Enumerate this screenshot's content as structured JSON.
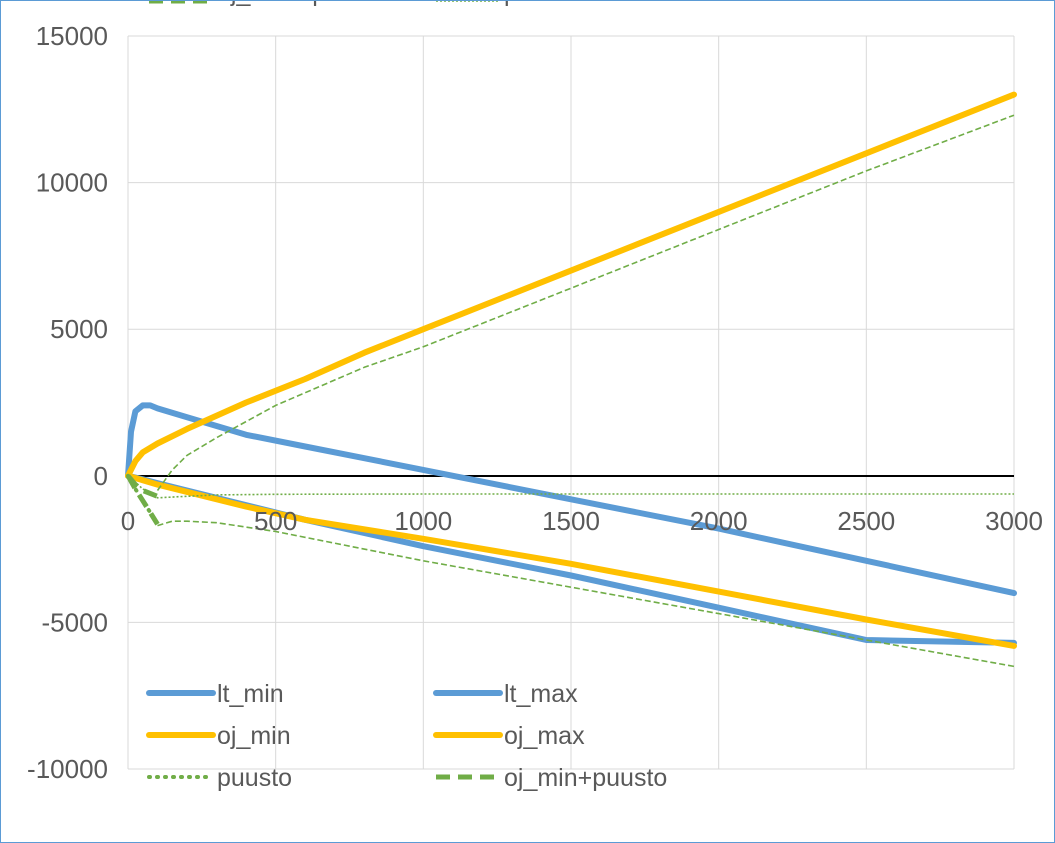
{
  "chart_data": {
    "type": "line",
    "title": "",
    "xlabel": "",
    "ylabel": "",
    "xlim": [
      0,
      3000
    ],
    "ylim": [
      -10000,
      15000
    ],
    "x_ticks": [
      0,
      500,
      1000,
      1500,
      2000,
      2500,
      3000
    ],
    "y_ticks": [
      -10000,
      -5000,
      0,
      5000,
      10000,
      15000
    ],
    "x_tick_labels": [
      "0",
      "500",
      "1000",
      "1500",
      "2000",
      "2500",
      "3000"
    ],
    "y_tick_labels": [
      "-10000",
      "-5000",
      "0",
      "5000",
      "10000",
      "15000"
    ],
    "grid": true,
    "legend_position": "bottom-left",
    "series": [
      {
        "name": "lt_min",
        "color": "#5b9bd5",
        "style": "solid",
        "x": [
          0,
          50,
          100,
          200,
          400,
          600,
          1000,
          1500,
          2000,
          2500,
          3000
        ],
        "y": [
          0,
          -120,
          -250,
          -500,
          -1000,
          -1500,
          -2400,
          -3400,
          -4500,
          -5600,
          -5700
        ]
      },
      {
        "name": "lt_max",
        "color": "#5b9bd5",
        "style": "solid",
        "x": [
          0,
          10,
          25,
          50,
          75,
          100,
          200,
          400,
          600,
          800,
          1000,
          1500,
          2000,
          2500,
          3000
        ],
        "y": [
          0,
          1500,
          2200,
          2400,
          2400,
          2300,
          2000,
          1400,
          1000,
          600,
          200,
          -800,
          -1800,
          -2900,
          -4000
        ]
      },
      {
        "name": "oj_min",
        "color": "#ffc000",
        "style": "solid",
        "x": [
          0,
          50,
          100,
          200,
          400,
          600,
          1000,
          1500,
          2000,
          2500,
          3000
        ],
        "y": [
          0,
          -150,
          -300,
          -550,
          -1050,
          -1500,
          -2150,
          -3000,
          -3950,
          -4900,
          -5800
        ]
      },
      {
        "name": "oj_max",
        "color": "#ffc000",
        "style": "solid",
        "x": [
          0,
          25,
          50,
          100,
          200,
          400,
          600,
          800,
          1000,
          1500,
          2000,
          2500,
          3000
        ],
        "y": [
          0,
          500,
          800,
          1100,
          1600,
          2500,
          3300,
          4200,
          5000,
          7000,
          9000,
          11000,
          13000
        ]
      },
      {
        "name": "puusto",
        "color": "#70ad47",
        "style": "dotted",
        "x": [
          0,
          25,
          50,
          75
        ],
        "y": [
          0,
          -450,
          -850,
          -1250
        ]
      },
      {
        "name": "oj_min+puusto",
        "color": "#70ad47",
        "style": "dashed",
        "x": [
          0,
          25,
          50,
          75,
          100
        ],
        "y": [
          0,
          -450,
          -850,
          -1250,
          -1650
        ]
      },
      {
        "name": "oj_max+puusto",
        "color": "#70ad47",
        "style": "dashed",
        "x": [
          0,
          25,
          50,
          100
        ],
        "y": [
          0,
          -300,
          -500,
          -700
        ]
      },
      {
        "name": "puusto",
        "color": "#70ad47",
        "style": "dotted-fine",
        "x": [
          0,
          50,
          100,
          200,
          300,
          500,
          1000,
          1500,
          2000,
          3000
        ],
        "y": [
          0,
          -450,
          -750,
          -700,
          -650,
          -630,
          -620,
          -620,
          -620,
          -620
        ]
      },
      {
        "name": "",
        "color": "#70ad47",
        "style": "dashed-fine",
        "x": [
          100,
          150,
          200,
          300,
          500,
          1000,
          1500,
          2000,
          2500,
          3000
        ],
        "y": [
          -1700,
          -1550,
          -1550,
          -1600,
          -1900,
          -2900,
          -3800,
          -4700,
          -5600,
          -6500
        ]
      },
      {
        "name": "",
        "color": "#70ad47",
        "style": "dashed-fine",
        "x": [
          100,
          150,
          200,
          300,
          500,
          800,
          1000,
          1500,
          2000,
          2500,
          3000
        ],
        "y": [
          -500,
          200,
          700,
          1300,
          2400,
          3700,
          4400,
          6400,
          8400,
          10400,
          12300
        ]
      }
    ],
    "legend": [
      {
        "series_index": 0,
        "label": "lt_min"
      },
      {
        "series_index": 1,
        "label": "lt_max"
      },
      {
        "series_index": 2,
        "label": "oj_min"
      },
      {
        "series_index": 3,
        "label": "oj_max"
      },
      {
        "series_index": 4,
        "label": "puusto"
      },
      {
        "series_index": 5,
        "label": "oj_min+puusto"
      },
      {
        "series_index": 6,
        "label": "oj_max+puusto"
      },
      {
        "series_index": 7,
        "label": "puusto"
      }
    ]
  }
}
